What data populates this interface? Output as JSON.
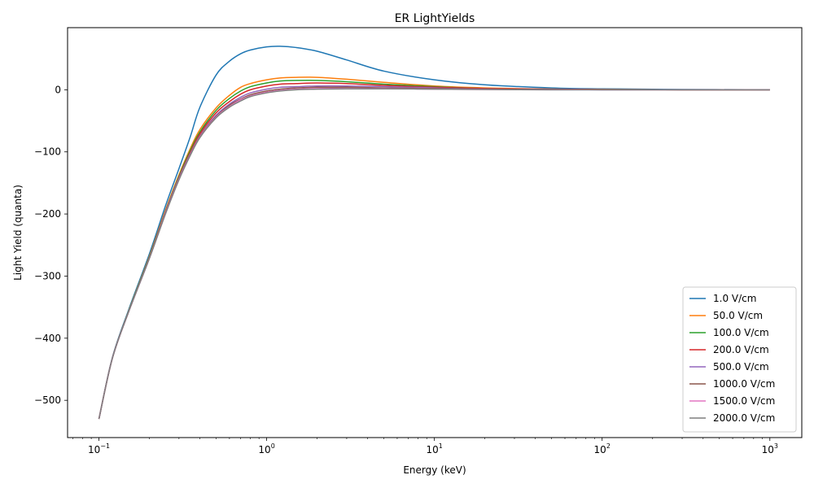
{
  "chart_data": {
    "type": "line",
    "title": "ER LightYields",
    "xlabel": "Energy (keV)",
    "ylabel": "Light Yield (quanta)",
    "xscale": "log",
    "xlim": [
      0.065,
      1550
    ],
    "ylim": [
      -560,
      100
    ],
    "xticks": [
      {
        "value": 0.1,
        "base": "10",
        "exp": "−1"
      },
      {
        "value": 1,
        "base": "10",
        "exp": "0"
      },
      {
        "value": 10,
        "base": "10",
        "exp": "1"
      },
      {
        "value": 100,
        "base": "10",
        "exp": "2"
      },
      {
        "value": 1000,
        "base": "10",
        "exp": "3"
      }
    ],
    "yticks": [
      {
        "value": 0,
        "label": "0"
      },
      {
        "value": -100,
        "label": "−100"
      },
      {
        "value": -200,
        "label": "−200"
      },
      {
        "value": -300,
        "label": "−300"
      },
      {
        "value": -400,
        "label": "−400"
      },
      {
        "value": -500,
        "label": "−500"
      }
    ],
    "grid": false,
    "legend_position": "lower-right",
    "series": [
      {
        "name": "1.0 V/cm",
        "color": "#1f77b4",
        "x": [
          0.1,
          0.12,
          0.15,
          0.2,
          0.25,
          0.3,
          0.35,
          0.4,
          0.5,
          0.6,
          0.7,
          0.8,
          1.0,
          1.2,
          1.5,
          2,
          3,
          5,
          10,
          20,
          50,
          100,
          300,
          1000
        ],
        "y": [
          -530,
          -432,
          -355,
          -264,
          -186,
          -127,
          -76,
          -28,
          24,
          46,
          58,
          64,
          69,
          70,
          68,
          62,
          48,
          30,
          16,
          8,
          3,
          1.5,
          0.5,
          0
        ]
      },
      {
        "name": "50.0 V/cm",
        "color": "#ff7f0e",
        "x": [
          0.1,
          0.12,
          0.15,
          0.2,
          0.25,
          0.3,
          0.35,
          0.4,
          0.5,
          0.6,
          0.7,
          0.8,
          1.0,
          1.2,
          1.5,
          2,
          3,
          5,
          10,
          20,
          50,
          100,
          300,
          1000
        ],
        "y": [
          -530,
          -433,
          -357,
          -268,
          -193,
          -137,
          -95,
          -64,
          -29,
          -9,
          4,
          10,
          16,
          19,
          20,
          20,
          17,
          12,
          6,
          3,
          1,
          0.5,
          0,
          0
        ]
      },
      {
        "name": "100.0 V/cm",
        "color": "#2ca02c",
        "x": [
          0.1,
          0.12,
          0.15,
          0.2,
          0.25,
          0.3,
          0.35,
          0.4,
          0.5,
          0.6,
          0.7,
          0.8,
          1.0,
          1.2,
          1.5,
          2,
          3,
          5,
          10,
          20,
          50,
          100,
          300,
          1000
        ],
        "y": [
          -530,
          -433,
          -357,
          -269,
          -195,
          -139,
          -98,
          -68,
          -33,
          -14,
          -2,
          5,
          11,
          14,
          15,
          15,
          13,
          9,
          5,
          2,
          1,
          0.5,
          0,
          0
        ]
      },
      {
        "name": "200.0 V/cm",
        "color": "#d62728",
        "x": [
          0.1,
          0.12,
          0.15,
          0.2,
          0.25,
          0.3,
          0.35,
          0.4,
          0.5,
          0.6,
          0.7,
          0.8,
          1.0,
          1.2,
          1.5,
          2,
          3,
          5,
          10,
          20,
          50,
          100,
          300,
          1000
        ],
        "y": [
          -530,
          -433,
          -358,
          -270,
          -196,
          -141,
          -101,
          -71,
          -37,
          -19,
          -7,
          0,
          6,
          9,
          10,
          11,
          10,
          7,
          4,
          2,
          1,
          0.5,
          0,
          0
        ]
      },
      {
        "name": "500.0 V/cm",
        "color": "#9467bd",
        "x": [
          0.1,
          0.12,
          0.15,
          0.2,
          0.25,
          0.3,
          0.35,
          0.4,
          0.5,
          0.6,
          0.7,
          0.8,
          1.0,
          1.2,
          1.5,
          2,
          3,
          5,
          10,
          20,
          50,
          100,
          300,
          1000
        ],
        "y": [
          -530,
          -433,
          -358,
          -271,
          -197,
          -142,
          -103,
          -74,
          -41,
          -23,
          -12,
          -5,
          1,
          4,
          5,
          6,
          6,
          5,
          3,
          1,
          0.5,
          0,
          0,
          0
        ]
      },
      {
        "name": "1000.0 V/cm",
        "color": "#8c564b",
        "x": [
          0.1,
          0.12,
          0.15,
          0.2,
          0.25,
          0.3,
          0.35,
          0.4,
          0.5,
          0.6,
          0.7,
          0.8,
          1.0,
          1.2,
          1.5,
          2,
          3,
          5,
          10,
          20,
          50,
          100,
          300,
          1000
        ],
        "y": [
          -530,
          -433,
          -358,
          -271,
          -198,
          -143,
          -104,
          -75,
          -43,
          -25,
          -15,
          -8,
          -2,
          1,
          3,
          4,
          4,
          3,
          2,
          1,
          0.5,
          0,
          0,
          0
        ]
      },
      {
        "name": "1500.0 V/cm",
        "color": "#e377c2",
        "x": [
          0.1,
          0.12,
          0.15,
          0.2,
          0.25,
          0.3,
          0.35,
          0.4,
          0.5,
          0.6,
          0.7,
          0.8,
          1.0,
          1.2,
          1.5,
          2,
          3,
          5,
          10,
          20,
          50,
          100,
          300,
          1000
        ],
        "y": [
          -530,
          -433,
          -358,
          -271,
          -198,
          -144,
          -105,
          -76,
          -44,
          -27,
          -16,
          -10,
          -4,
          -1,
          1,
          2,
          2,
          2,
          1,
          0.5,
          0,
          0,
          0,
          0
        ]
      },
      {
        "name": "2000.0 V/cm",
        "color": "#7f7f7f",
        "x": [
          0.1,
          0.12,
          0.15,
          0.2,
          0.25,
          0.3,
          0.35,
          0.4,
          0.5,
          0.6,
          0.7,
          0.8,
          1.0,
          1.2,
          1.5,
          2,
          3,
          5,
          10,
          20,
          50,
          100,
          300,
          1000
        ],
        "y": [
          -530,
          -433,
          -358,
          -271,
          -199,
          -145,
          -106,
          -77,
          -45,
          -28,
          -18,
          -11,
          -5,
          -2,
          0,
          1,
          1.5,
          1.5,
          1,
          0.5,
          0,
          0,
          0,
          0
        ]
      }
    ]
  }
}
